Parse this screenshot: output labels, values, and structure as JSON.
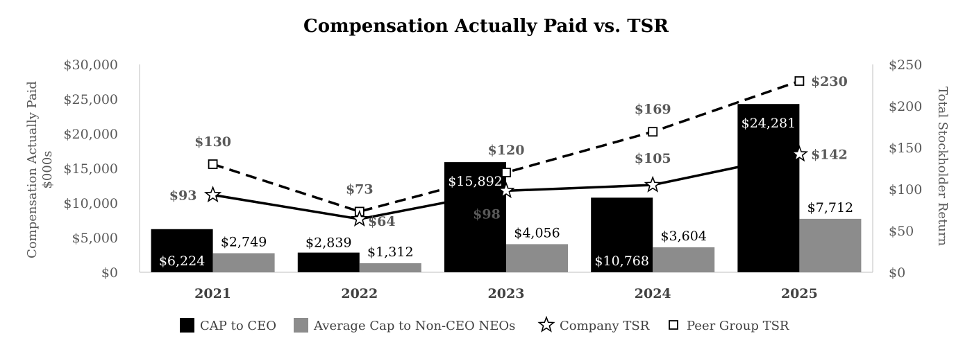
{
  "chart_data": {
    "type": "bar",
    "title": "Compensation Actually Paid vs. TSR",
    "categories": [
      "2021",
      "2022",
      "2023",
      "2024",
      "2025"
    ],
    "y_left": {
      "label_line1": "Compensation Actually Paid",
      "label_line2": "$000s",
      "range": [
        0,
        30000
      ],
      "ticks": [
        "$0",
        "$5,000",
        "$10,000",
        "$15,000",
        "$20,000",
        "$25,000",
        "$30,000"
      ]
    },
    "y_right": {
      "label": "Total Stockholder Return",
      "range": [
        0,
        250
      ],
      "ticks": [
        "$0",
        "$50",
        "$100",
        "$150",
        "$200",
        "$250"
      ]
    },
    "series": [
      {
        "name": "CAP to CEO",
        "kind": "bar",
        "axis": "left",
        "color": "#000000",
        "values": [
          6224,
          2839,
          15892,
          10768,
          24281
        ],
        "labels": [
          "$6,224",
          "$2,839",
          "$15,892",
          "$10,768",
          "$24,281"
        ]
      },
      {
        "name": "Average Cap to Non-CEO NEOs",
        "kind": "bar",
        "axis": "left",
        "color": "#8c8c8c",
        "values": [
          2749,
          1312,
          4056,
          3604,
          7712
        ],
        "labels": [
          "$2,749",
          "$1,312",
          "$4,056",
          "$3,604",
          "$7,712"
        ]
      },
      {
        "name": "Company TSR",
        "kind": "line",
        "axis": "right",
        "color": "#000000",
        "marker": "star",
        "values": [
          93,
          64,
          98,
          105,
          142
        ],
        "labels": [
          "$93",
          "$64",
          "$98",
          "$105",
          "$142"
        ]
      },
      {
        "name": "Peer Group TSR",
        "kind": "line",
        "axis": "right",
        "color": "#000000",
        "marker": "square",
        "dash": true,
        "values": [
          130,
          73,
          120,
          169,
          230
        ],
        "labels": [
          "$130",
          "$73",
          "$120",
          "$169",
          "$230"
        ]
      }
    ],
    "legend_position": "bottom",
    "grid": false
  }
}
